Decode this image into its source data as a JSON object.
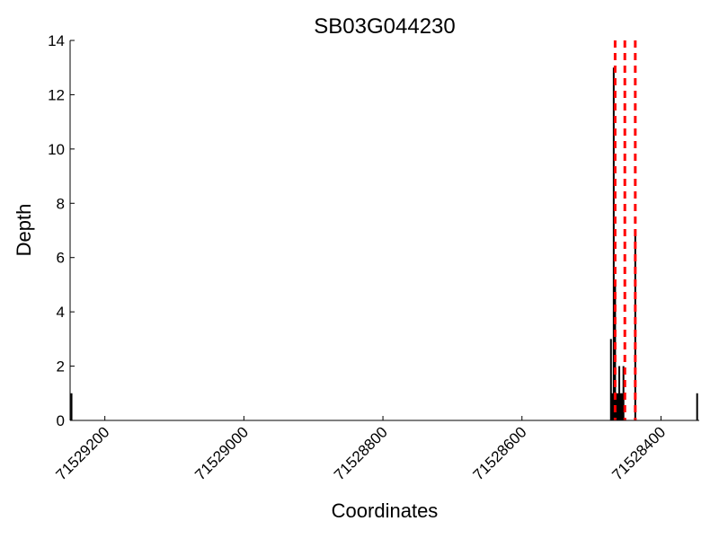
{
  "chart_data": {
    "type": "bar",
    "title": "SB03G044230",
    "xlabel": "Coordinates",
    "ylabel": "Depth",
    "x_inverted": true,
    "xlim": [
      71529250,
      71528345
    ],
    "ylim": [
      0,
      14
    ],
    "xticks": [
      71529200,
      71529000,
      71528800,
      71528600,
      71528400
    ],
    "xtick_labels": [
      "71529200",
      "71529000",
      "71528800",
      "71528600",
      "71528400"
    ],
    "yticks": [
      0,
      2,
      4,
      6,
      8,
      10,
      12,
      14
    ],
    "ytick_labels": [
      "0",
      "2",
      "4",
      "6",
      "8",
      "10",
      "12",
      "14"
    ],
    "bars": [
      {
        "x": 71529248,
        "depth": 1
      },
      {
        "x": 71528472,
        "depth": 3
      },
      {
        "x": 71528470,
        "depth": 1
      },
      {
        "x": 71528468,
        "depth": 13
      },
      {
        "x": 71528466,
        "depth": 5
      },
      {
        "x": 71528464,
        "depth": 1
      },
      {
        "x": 71528462,
        "depth": 1
      },
      {
        "x": 71528460,
        "depth": 2
      },
      {
        "x": 71528458,
        "depth": 1
      },
      {
        "x": 71528456,
        "depth": 1
      },
      {
        "x": 71528454,
        "depth": 2
      },
      {
        "x": 71528437,
        "depth": 7
      },
      {
        "x": 71528348,
        "depth": 1
      }
    ],
    "vlines": [
      {
        "x": 71528466,
        "color": "#ff0000",
        "style": "dashed"
      },
      {
        "x": 71528452,
        "color": "#ff0000",
        "style": "dashed"
      },
      {
        "x": 71528437,
        "color": "#ff0000",
        "style": "dashed"
      }
    ],
    "bar_color": "#000000",
    "grid": false,
    "legend": "none"
  }
}
